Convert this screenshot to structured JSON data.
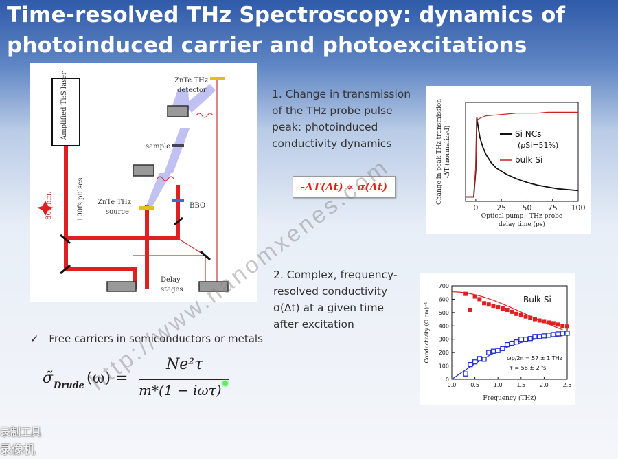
{
  "title_line1": "Time-resolved THz Spectroscopy: dynamics of",
  "title_line2": "photoinduced carrier and photoexcitations",
  "setup": {
    "laser": "Amplified Ti:S laser",
    "pulses": "100fs pulses",
    "wavelength": "800 nm.",
    "detector_l1": "ZnTe THz",
    "detector_l2": "detector",
    "sample": "sample",
    "source_l1": "ZnTe THz",
    "source_l2": "source",
    "bbo": "BBO",
    "delay_l1": "Delay",
    "delay_l2": "stages"
  },
  "point1": [
    "1. Change in transmission",
    "of the THz probe pulse",
    "peak: photoinduced",
    "conductivity dynamics"
  ],
  "point1_formula": "-ΔT(Δt) ∝ σ(Δt)",
  "point2": [
    "2. Complex, frequency-",
    "resolved conductivity",
    "σ(Δt) at a given time",
    "after excitation"
  ],
  "bullet": "Free carriers in semiconductors or metals",
  "drude": {
    "lhs": "σ̃",
    "sub": "Drude",
    "arg": "(ω) =",
    "num": "Ne²τ",
    "den": "m*(1 − iωτ)"
  },
  "watermark": "http://www.nanomxenes.com",
  "corner_text": [
    "录制工具",
    "录像机"
  ],
  "chart_data": [
    {
      "type": "line",
      "ylabel_l1": "Change in peak THz transmission",
      "ylabel_l2": "-ΔT (normalized)",
      "xlabel_l1": "Optical pump - THz probe",
      "xlabel_l2": "delay time (ps)",
      "xticks": [
        0,
        25,
        50,
        75,
        100
      ],
      "xlim": [
        -10,
        100
      ],
      "ylim": [
        -0.05,
        1.05
      ],
      "series": [
        {
          "name": "Si NCs",
          "sub": "(ρSi=51%)",
          "color": "#111111",
          "x": [
            -10,
            -2,
            0,
            1,
            2,
            4,
            7,
            10,
            15,
            20,
            30,
            40,
            50,
            60,
            70,
            80,
            90,
            100
          ],
          "y": [
            0,
            0,
            0.3,
            0.88,
            0.8,
            0.66,
            0.55,
            0.47,
            0.38,
            0.32,
            0.25,
            0.2,
            0.16,
            0.13,
            0.11,
            0.09,
            0.08,
            0.07
          ]
        },
        {
          "name": "bulk Si",
          "color": "#cc2222",
          "x": [
            -10,
            -2,
            0,
            1,
            2,
            5,
            10,
            20,
            30,
            40,
            50,
            60,
            70,
            80,
            90,
            100
          ],
          "y": [
            0,
            0,
            0.35,
            0.82,
            0.86,
            0.88,
            0.9,
            0.91,
            0.92,
            0.93,
            0.93,
            0.93,
            0.94,
            0.94,
            0.94,
            0.94
          ]
        }
      ]
    },
    {
      "type": "scatter",
      "annotation": "Bulk Si",
      "fit_l1": "ωp/2π = 57 ± 1 THz",
      "fit_l2": "τ = 58 ± 2 fs",
      "ylabel": "Conductivity (Ω cm)⁻¹",
      "xlabel": "Frequency (THz)",
      "xticks": [
        0.0,
        0.5,
        1.0,
        1.5,
        2.0,
        2.5
      ],
      "yticks": [
        0,
        100,
        200,
        300,
        400,
        500,
        600,
        700
      ],
      "xlim": [
        0,
        2.5
      ],
      "ylim": [
        0,
        700
      ],
      "real": {
        "color": "#e02020",
        "x": [
          0.3,
          0.4,
          0.5,
          0.6,
          0.7,
          0.8,
          0.9,
          1.0,
          1.1,
          1.2,
          1.3,
          1.4,
          1.5,
          1.6,
          1.7,
          1.8,
          1.9,
          2.0,
          2.1,
          2.2,
          2.3,
          2.4,
          2.5
        ],
        "y": [
          640,
          520,
          620,
          600,
          570,
          560,
          550,
          540,
          530,
          520,
          505,
          490,
          480,
          470,
          460,
          450,
          440,
          435,
          425,
          420,
          410,
          400,
          395
        ]
      },
      "imag": {
        "color": "#1f2fd0",
        "x": [
          0.3,
          0.4,
          0.5,
          0.6,
          0.7,
          0.8,
          0.9,
          1.0,
          1.1,
          1.2,
          1.3,
          1.4,
          1.5,
          1.6,
          1.7,
          1.8,
          1.9,
          2.0,
          2.1,
          2.2,
          2.3,
          2.4,
          2.5
        ],
        "y": [
          40,
          110,
          130,
          155,
          150,
          200,
          210,
          215,
          230,
          260,
          270,
          280,
          300,
          300,
          305,
          320,
          320,
          325,
          330,
          335,
          340,
          345,
          345
        ]
      }
    }
  ]
}
